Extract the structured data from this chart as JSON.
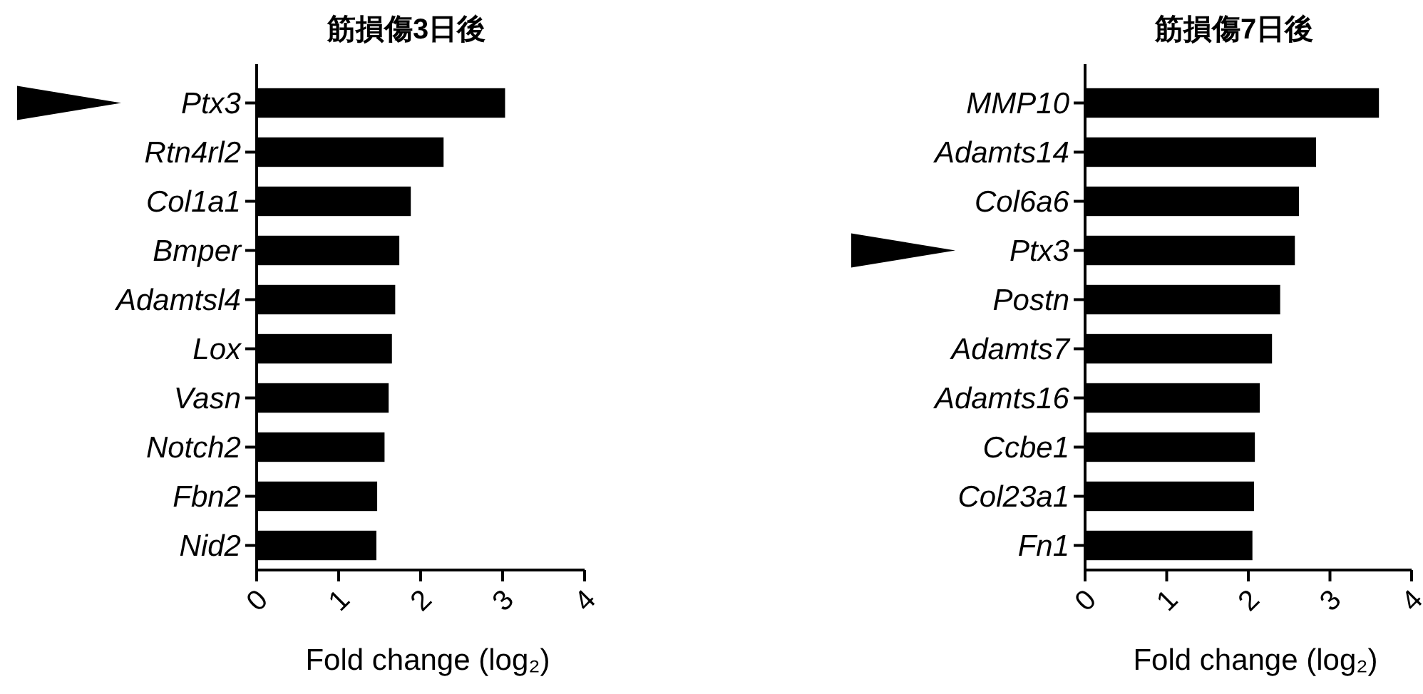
{
  "chart_data": [
    {
      "type": "bar",
      "orientation": "horizontal",
      "title": "筋損傷3日後",
      "xlabel": "Fold change (log₂)",
      "color": "#000000",
      "xlim": [
        0,
        4
      ],
      "xticks": [
        0,
        1,
        2,
        3,
        4
      ],
      "grid": false,
      "categories": [
        "Ptx3",
        "Rtn4rl2",
        "Col1a1",
        "Bmper",
        "Adamtsl4",
        "Lox",
        "Vasn",
        "Notch2",
        "Fbn2",
        "Nid2"
      ],
      "values": [
        3.03,
        2.28,
        1.88,
        1.74,
        1.69,
        1.65,
        1.61,
        1.56,
        1.47,
        1.46
      ]
    },
    {
      "type": "bar",
      "orientation": "horizontal",
      "title": "筋損傷7日後",
      "xlabel": "Fold change (log₂)",
      "color": "#000000",
      "xlim": [
        0,
        4
      ],
      "xticks": [
        0,
        1,
        2,
        3,
        4
      ],
      "grid": false,
      "categories": [
        "MMP10",
        "Adamts14",
        "Col6a6",
        "Ptx3",
        "Postn",
        "Adamts7",
        "Adamts16",
        "Ccbe1",
        "Col23a1",
        "Fn1"
      ],
      "values": [
        3.6,
        2.83,
        2.62,
        2.57,
        2.39,
        2.29,
        2.14,
        2.08,
        2.07,
        2.05
      ]
    }
  ]
}
